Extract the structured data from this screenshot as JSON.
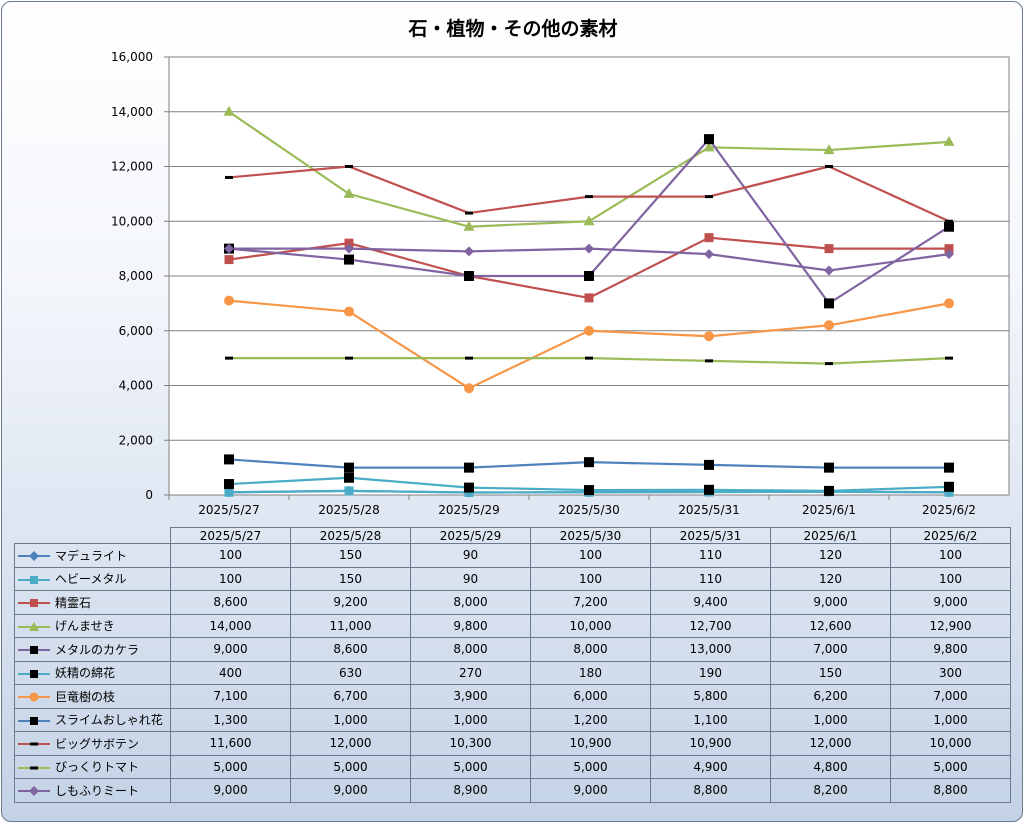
{
  "title": "石・植物・その他の素材",
  "chart_data": {
    "type": "line",
    "title": "石・植物・その他の素材",
    "categories": [
      "2025/5/27",
      "2025/5/28",
      "2025/5/29",
      "2025/5/30",
      "2025/5/31",
      "2025/6/1",
      "2025/6/2"
    ],
    "ylim": [
      0,
      16000
    ],
    "yticks": [
      "0",
      "2,000",
      "4,000",
      "6,000",
      "8,000",
      "10,000",
      "12,000",
      "14,000",
      "16,000"
    ],
    "grid": true,
    "legend": "data-table",
    "series": [
      {
        "name": "マデュライト",
        "color": "#4f81bd",
        "marker": "diamond",
        "values": [
          100,
          150,
          90,
          100,
          110,
          120,
          100
        ],
        "display": [
          "100",
          "150",
          "90",
          "100",
          "110",
          "120",
          "100"
        ]
      },
      {
        "name": "ヘビーメタル",
        "color": "#4bacc6",
        "marker": "square",
        "values": [
          100,
          150,
          90,
          100,
          110,
          120,
          100
        ],
        "display": [
          "100",
          "150",
          "90",
          "100",
          "110",
          "120",
          "100"
        ]
      },
      {
        "name": "精霊石",
        "color": "#c0504d",
        "marker": "square",
        "values": [
          8600,
          9200,
          8000,
          7200,
          9400,
          9000,
          9000
        ],
        "display": [
          "8,600",
          "9,200",
          "8,000",
          "7,200",
          "9,400",
          "9,000",
          "9,000"
        ]
      },
      {
        "name": "げんませき",
        "color": "#9bbb59",
        "marker": "triangle",
        "values": [
          14000,
          11000,
          9800,
          10000,
          12700,
          12600,
          12900
        ],
        "display": [
          "14,000",
          "11,000",
          "9,800",
          "10,000",
          "12,700",
          "12,600",
          "12,900"
        ]
      },
      {
        "name": "メタルのカケラ",
        "color": "#8064a2",
        "marker": "blacksquare",
        "values": [
          9000,
          8600,
          8000,
          8000,
          13000,
          7000,
          9800
        ],
        "display": [
          "9,000",
          "8,600",
          "8,000",
          "8,000",
          "13,000",
          "7,000",
          "9,800"
        ]
      },
      {
        "name": "妖精の綿花",
        "color": "#4bacc6",
        "marker": "blacksquare",
        "values": [
          400,
          630,
          270,
          180,
          190,
          150,
          300
        ],
        "display": [
          "400",
          "630",
          "270",
          "180",
          "190",
          "150",
          "300"
        ]
      },
      {
        "name": "巨竜樹の枝",
        "color": "#f79646",
        "marker": "circle",
        "values": [
          7100,
          6700,
          3900,
          6000,
          5800,
          6200,
          7000
        ],
        "display": [
          "7,100",
          "6,700",
          "3,900",
          "6,000",
          "5,800",
          "6,200",
          "7,000"
        ]
      },
      {
        "name": "スライムおしゃれ花",
        "color": "#4f81bd",
        "marker": "blacksquare",
        "values": [
          1300,
          1000,
          1000,
          1200,
          1100,
          1000,
          1000
        ],
        "display": [
          "1,300",
          "1,000",
          "1,000",
          "1,200",
          "1,100",
          "1,000",
          "1,000"
        ]
      },
      {
        "name": "ビッグサボテン",
        "color": "#c0504d",
        "marker": "dash",
        "values": [
          11600,
          12000,
          10300,
          10900,
          10900,
          12000,
          10000
        ],
        "display": [
          "11,600",
          "12,000",
          "10,300",
          "10,900",
          "10,900",
          "12,000",
          "10,000"
        ]
      },
      {
        "name": "びっくりトマト",
        "color": "#9bbb59",
        "marker": "dash",
        "values": [
          5000,
          5000,
          5000,
          5000,
          4900,
          4800,
          5000
        ],
        "display": [
          "5,000",
          "5,000",
          "5,000",
          "5,000",
          "4,900",
          "4,800",
          "5,000"
        ]
      },
      {
        "name": "しもふりミート",
        "color": "#8064a2",
        "marker": "diamond",
        "values": [
          9000,
          9000,
          8900,
          9000,
          8800,
          8200,
          8800
        ],
        "display": [
          "9,000",
          "9,000",
          "8,900",
          "9,000",
          "8,800",
          "8,200",
          "8,800"
        ]
      }
    ]
  }
}
